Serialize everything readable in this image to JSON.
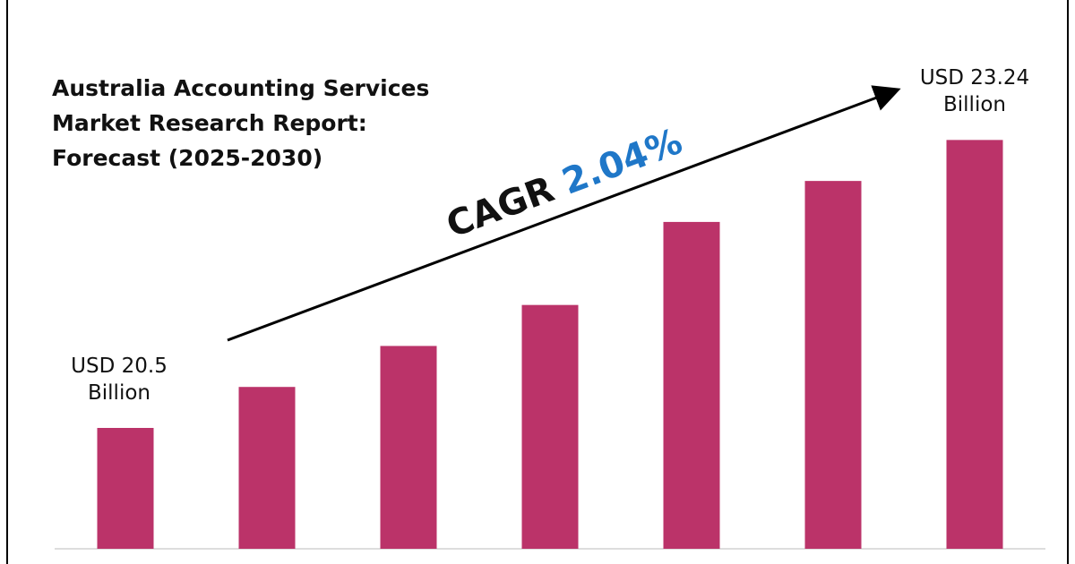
{
  "chart_data": {
    "type": "bar",
    "title": [
      "Australia Accounting Services",
      "Market Research Report:",
      "Forecast (2025-2030)"
    ],
    "categories": [
      null,
      null,
      null,
      null,
      null,
      null,
      null
    ],
    "values": [
      20.5,
      20.89,
      21.28,
      21.67,
      22.46,
      22.85,
      23.24
    ],
    "value_labels": [
      "USD 20.5 Billion",
      null,
      null,
      null,
      null,
      null,
      "USD 23.24 Billion"
    ],
    "color": "#bb3369",
    "ylim": [
      19.35,
      23.72
    ],
    "annotation": {
      "label": "CAGR",
      "value": "2.04%"
    }
  }
}
